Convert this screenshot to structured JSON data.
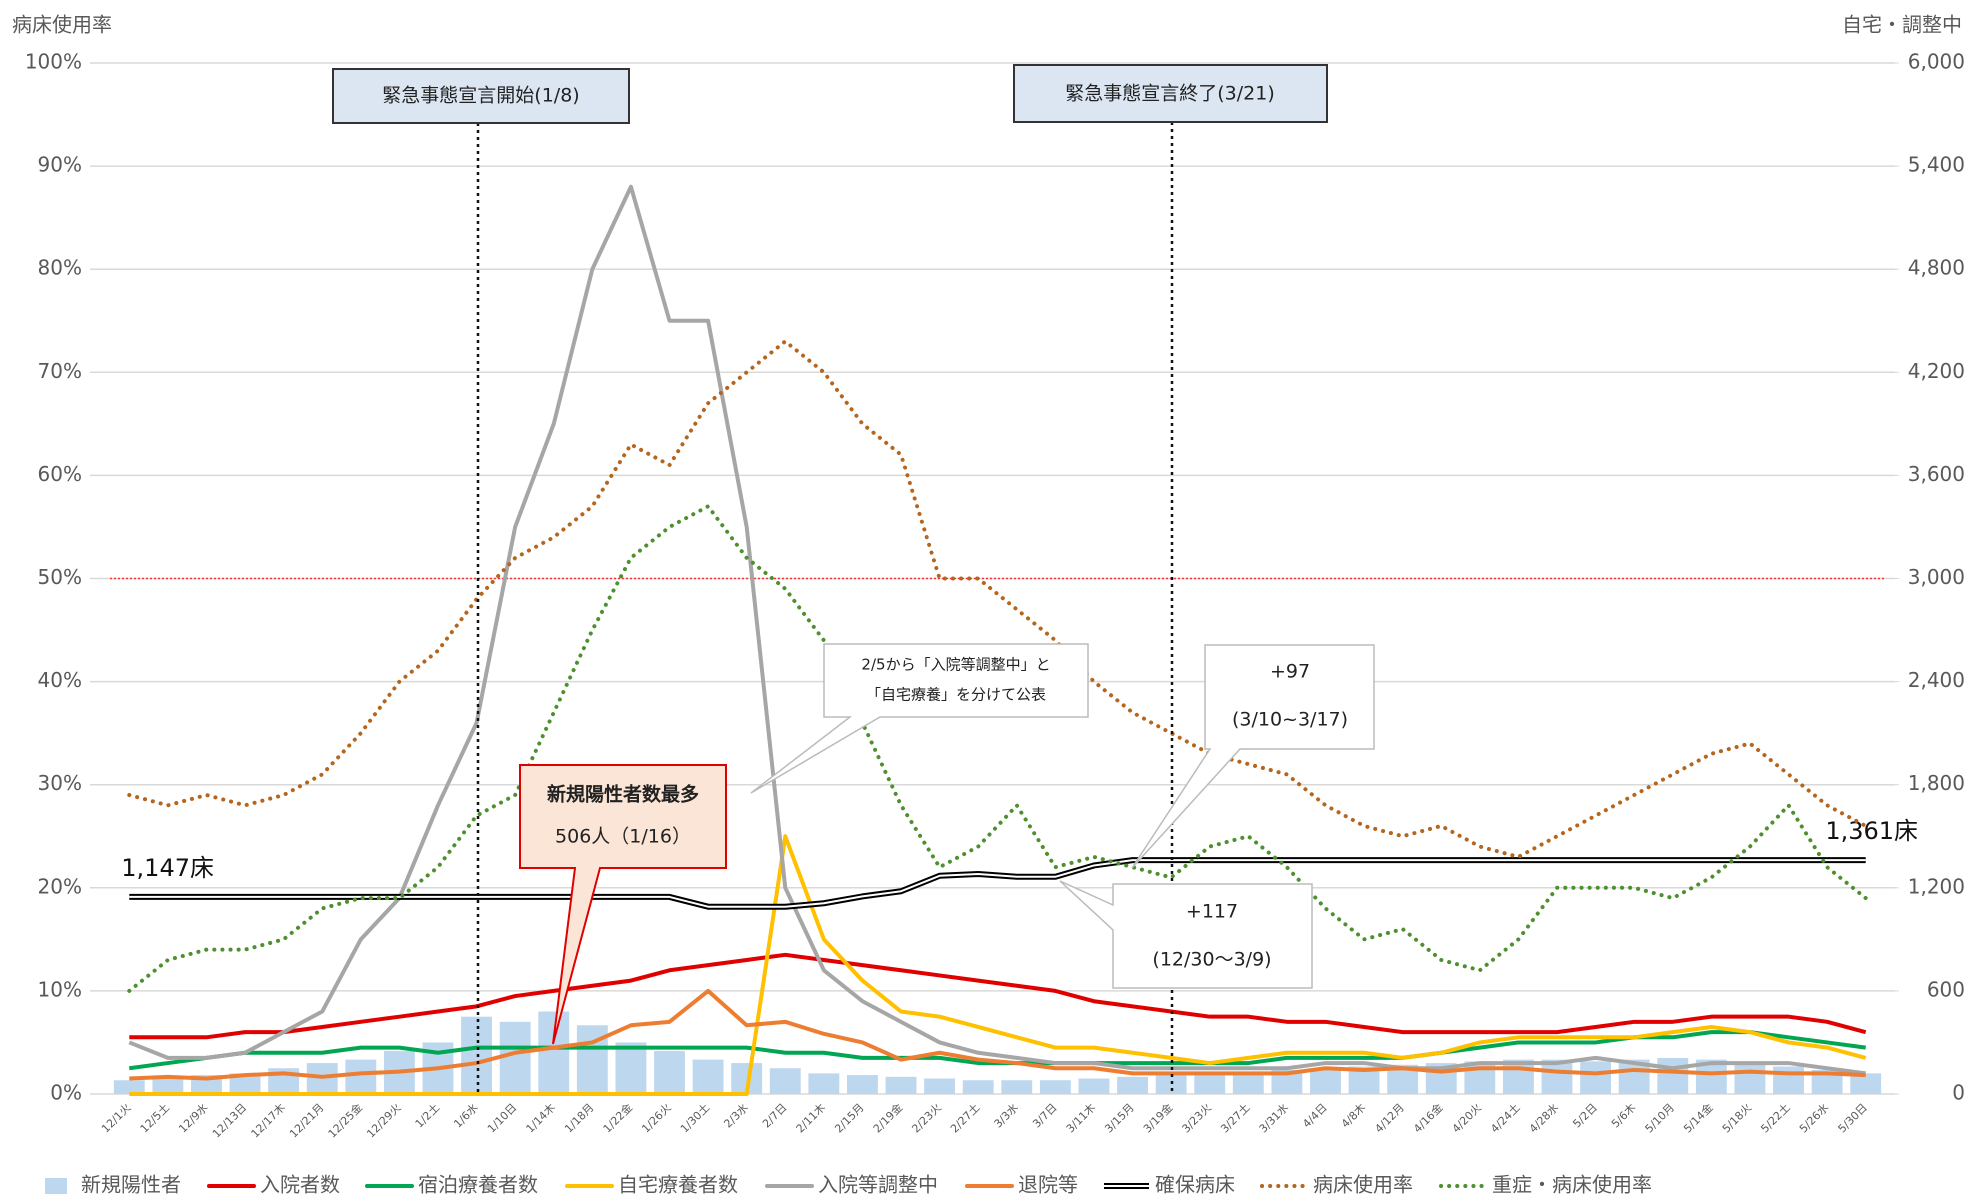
{
  "chart_data": {
    "type": "combo",
    "left_axis_title": "病床使用率",
    "right_axis_title": "自宅・調整中",
    "categories": [
      "12/1火",
      "12/5土",
      "12/9水",
      "12/13日",
      "12/17木",
      "12/21月",
      "12/25金",
      "12/29火",
      "1/2土",
      "1/6水",
      "1/10日",
      "1/14木",
      "1/18月",
      "1/22金",
      "1/26火",
      "1/30土",
      "2/3水",
      "2/7日",
      "2/11木",
      "2/15月",
      "2/19金",
      "2/23火",
      "2/27土",
      "3/3水",
      "3/7日",
      "3/11木",
      "3/15月",
      "3/19金",
      "3/23火",
      "3/27土",
      "3/31水",
      "4/4日",
      "4/8木",
      "4/12月",
      "4/16金",
      "4/20火",
      "4/24土",
      "4/28水",
      "5/2日",
      "5/6木",
      "5/10月",
      "5/14金",
      "5/18火",
      "5/22土",
      "5/26水",
      "5/30日"
    ],
    "ylim": [
      0,
      100
    ],
    "yticks": [
      {
        "value": 0,
        "label": "0%"
      },
      {
        "value": 10,
        "label": "10%"
      },
      {
        "value": 20,
        "label": "20%"
      },
      {
        "value": 30,
        "label": "30%"
      },
      {
        "value": 40,
        "label": "40%"
      },
      {
        "value": 50,
        "label": "50%"
      },
      {
        "value": 60,
        "label": "60%"
      },
      {
        "value": 70,
        "label": "70%"
      },
      {
        "value": 80,
        "label": "80%"
      },
      {
        "value": 90,
        "label": "90%"
      },
      {
        "value": 100,
        "label": "100%"
      }
    ],
    "y2lim": [
      0,
      6000
    ],
    "y2ticks": [
      0,
      600,
      {
        "value": 1200,
        "label": "1,200"
      },
      {
        "value": 1800,
        "label": "1,800"
      },
      {
        "value": 2400,
        "label": "2,400"
      },
      {
        "value": 3000,
        "label": "3,000"
      },
      {
        "value": 3600,
        "label": "3,600"
      },
      {
        "value": 4200,
        "label": "4,200"
      },
      {
        "value": 4800,
        "label": "4,800"
      },
      {
        "value": 5400,
        "label": "5,400"
      },
      {
        "value": 6000,
        "label": "6,000"
      }
    ],
    "grid": true,
    "reference_line": {
      "value": 50,
      "color": "#ff3030"
    },
    "series": [
      {
        "name": "新規陽性者",
        "color": "#bdd7ee",
        "style": "bar",
        "axis": "y2",
        "values": [
          80,
          100,
          110,
          120,
          150,
          180,
          200,
          250,
          300,
          450,
          420,
          480,
          400,
          300,
          250,
          200,
          180,
          150,
          120,
          110,
          100,
          90,
          80,
          80,
          80,
          90,
          100,
          110,
          120,
          130,
          140,
          150,
          160,
          170,
          180,
          190,
          200,
          200,
          190,
          200,
          210,
          200,
          180,
          160,
          140,
          120
        ]
      },
      {
        "name": "入院者数",
        "color": "#e00000",
        "style": "line",
        "axis": "y2",
        "values": [
          330,
          330,
          330,
          360,
          360,
          390,
          420,
          450,
          480,
          510,
          570,
          600,
          630,
          660,
          720,
          750,
          780,
          810,
          780,
          750,
          720,
          690,
          660,
          630,
          600,
          540,
          510,
          480,
          450,
          450,
          420,
          420,
          390,
          360,
          360,
          360,
          360,
          360,
          390,
          420,
          420,
          450,
          450,
          450,
          420,
          360
        ]
      },
      {
        "name": "宿泊療養者数",
        "color": "#00a651",
        "style": "line",
        "axis": "y2",
        "values": [
          150,
          180,
          210,
          240,
          240,
          240,
          270,
          270,
          240,
          270,
          270,
          270,
          270,
          270,
          270,
          270,
          270,
          240,
          240,
          210,
          210,
          210,
          180,
          180,
          180,
          180,
          180,
          180,
          180,
          180,
          210,
          210,
          210,
          210,
          240,
          270,
          300,
          300,
          300,
          330,
          330,
          360,
          360,
          330,
          300,
          270
        ]
      },
      {
        "name": "自宅療養者数",
        "color": "#ffc000",
        "style": "line",
        "axis": "y2",
        "values": [
          0,
          0,
          0,
          0,
          0,
          0,
          0,
          0,
          0,
          0,
          0,
          0,
          0,
          0,
          0,
          0,
          0,
          1500,
          900,
          660,
          480,
          450,
          390,
          330,
          270,
          270,
          240,
          210,
          180,
          210,
          240,
          240,
          240,
          210,
          240,
          300,
          330,
          330,
          330,
          330,
          360,
          390,
          360,
          300,
          270,
          210
        ]
      },
      {
        "name": "入院等調整中",
        "color": "#a6a6a6",
        "style": "line",
        "axis": "y2",
        "values": [
          300,
          210,
          210,
          240,
          360,
          480,
          900,
          1140,
          1680,
          2160,
          3300,
          3900,
          4800,
          5280,
          4500,
          4500,
          3300,
          1200,
          720,
          540,
          420,
          300,
          240,
          210,
          180,
          180,
          150,
          150,
          150,
          150,
          150,
          180,
          180,
          150,
          150,
          180,
          180,
          180,
          210,
          180,
          150,
          180,
          180,
          180,
          150,
          120
        ]
      },
      {
        "name": "退院等",
        "color": "#ed7d31",
        "style": "line",
        "axis": "y2",
        "values": [
          90,
          100,
          90,
          110,
          120,
          100,
          120,
          130,
          150,
          180,
          240,
          270,
          300,
          400,
          420,
          600,
          400,
          420,
          350,
          300,
          200,
          240,
          200,
          180,
          150,
          150,
          120,
          120,
          120,
          120,
          120,
          150,
          140,
          150,
          130,
          150,
          150,
          130,
          120,
          140,
          130,
          120,
          130,
          120,
          120,
          110
        ]
      },
      {
        "name": "確保病床",
        "color": "#000000",
        "style": "double",
        "axis": "y2",
        "values": [
          1147,
          1147,
          1147,
          1147,
          1147,
          1147,
          1147,
          1147,
          1147,
          1147,
          1147,
          1147,
          1147,
          1147,
          1147,
          1090,
          1090,
          1090,
          1110,
          1150,
          1180,
          1270,
          1280,
          1264,
          1264,
          1330,
          1361,
          1361,
          1361,
          1361,
          1361,
          1361,
          1361,
          1361,
          1361,
          1361,
          1361,
          1361,
          1361,
          1361,
          1361,
          1361,
          1361,
          1361,
          1361,
          1361
        ],
        "value_labels": [
          "1,147床",
          null,
          null,
          null,
          null,
          null,
          null,
          null,
          null,
          null,
          null,
          null,
          null,
          null,
          null,
          null,
          null,
          null,
          null,
          null,
          null,
          null,
          null,
          null,
          null,
          null,
          null,
          null,
          null,
          null,
          null,
          null,
          null,
          null,
          null,
          null,
          null,
          null,
          null,
          null,
          null,
          null,
          null,
          null,
          null,
          "1,361床"
        ]
      },
      {
        "name": "病床使用率",
        "color": "#b5651d",
        "style": "dotted",
        "axis": "y",
        "values": [
          29,
          28,
          29,
          28,
          29,
          31,
          35,
          40,
          43,
          48,
          52,
          54,
          57,
          63,
          61,
          67,
          70,
          73,
          70,
          65,
          62,
          50,
          50,
          47,
          44,
          40,
          37,
          35,
          33,
          32,
          31,
          28,
          26,
          25,
          26,
          24,
          23,
          25,
          27,
          29,
          31,
          33,
          34,
          31,
          28,
          26
        ]
      },
      {
        "name": "重症・病床使用率",
        "color": "#4e8f2e",
        "style": "dotted",
        "axis": "y",
        "values": [
          10,
          13,
          14,
          14,
          15,
          18,
          19,
          19,
          22,
          27,
          29,
          37,
          45,
          52,
          55,
          57,
          52,
          49,
          44,
          36,
          28,
          22,
          24,
          28,
          22,
          23,
          22,
          21,
          24,
          25,
          22,
          18,
          15,
          16,
          13,
          12,
          15,
          20,
          20,
          20,
          19,
          21,
          24,
          28,
          22,
          19
        ]
      }
    ],
    "annotations": {
      "start": "緊急事態宣言開始(1/8)",
      "end": "緊急事態宣言終了(3/21)",
      "peak_title": "新規陽性者数最多",
      "peak_value": "506人（1/16）",
      "note_1": "2/5から「入院等調整中」と",
      "note_2": "「自宅療養」を分けて公表",
      "plus97": "+97",
      "plus97_range": "(3/10~3/17)",
      "plus117": "+117",
      "plus117_range": "(12/30～3/9)"
    }
  }
}
